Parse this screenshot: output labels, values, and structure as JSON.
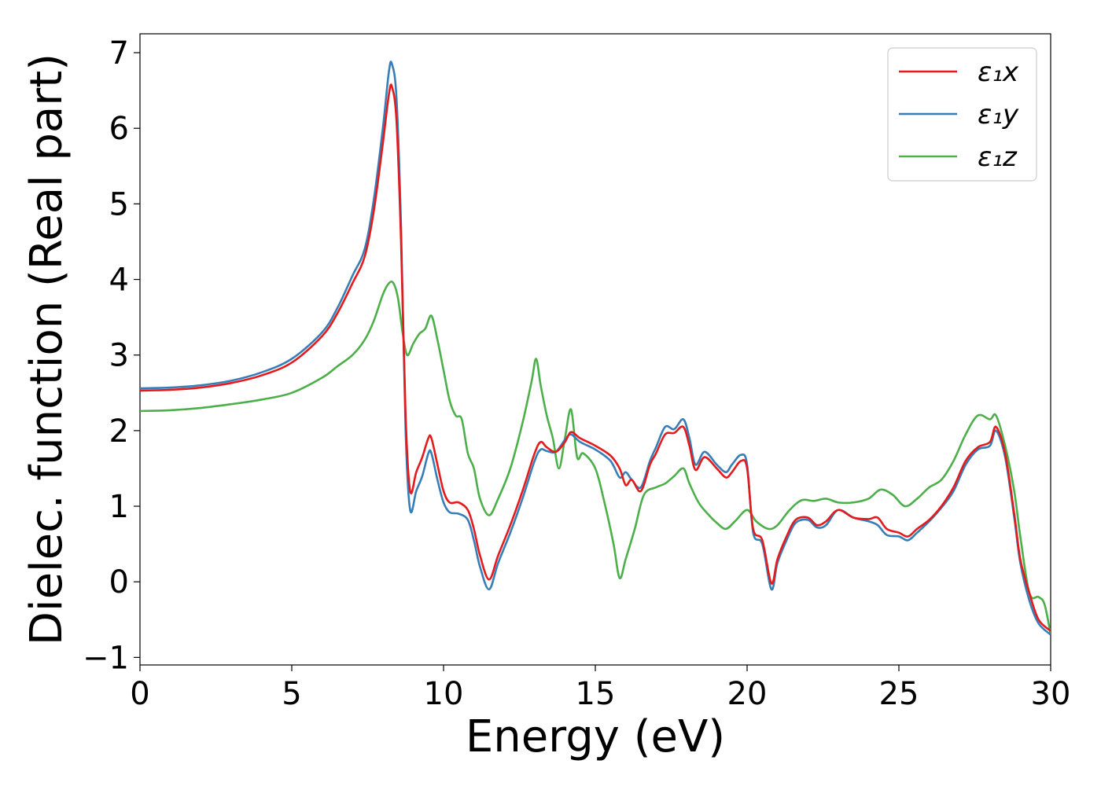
{
  "chart_data": {
    "type": "line",
    "title": "",
    "xlabel": "Energy (eV)",
    "ylabel": "Dielec. function (Real part)",
    "xlim": [
      0,
      30
    ],
    "ylim": [
      -1.1,
      7.25
    ],
    "xticks": [
      0,
      5,
      10,
      15,
      20,
      25,
      30
    ],
    "yticks": [
      -1,
      0,
      1,
      2,
      3,
      4,
      5,
      6,
      7
    ],
    "xtick_labels": [
      "0",
      "5",
      "10",
      "15",
      "20",
      "25",
      "30"
    ],
    "ytick_labels": [
      "−1",
      "0",
      "1",
      "2",
      "3",
      "4",
      "5",
      "6",
      "7"
    ],
    "grid": false,
    "legend_position": "top-right",
    "series": [
      {
        "name": "ε₁x",
        "color": "#e41a1c",
        "points": [
          [
            0,
            2.53
          ],
          [
            1,
            2.54
          ],
          [
            2,
            2.57
          ],
          [
            3,
            2.63
          ],
          [
            4,
            2.73
          ],
          [
            5,
            2.9
          ],
          [
            6,
            3.25
          ],
          [
            6.5,
            3.55
          ],
          [
            7,
            3.95
          ],
          [
            7.4,
            4.3
          ],
          [
            7.7,
            4.9
          ],
          [
            8.0,
            5.8
          ],
          [
            8.2,
            6.45
          ],
          [
            8.3,
            6.55
          ],
          [
            8.45,
            6.1
          ],
          [
            8.6,
            4.5
          ],
          [
            8.75,
            2.2
          ],
          [
            8.9,
            1.2
          ],
          [
            9.1,
            1.45
          ],
          [
            9.3,
            1.65
          ],
          [
            9.5,
            1.9
          ],
          [
            9.6,
            1.9
          ],
          [
            9.8,
            1.55
          ],
          [
            10.0,
            1.2
          ],
          [
            10.2,
            1.05
          ],
          [
            10.5,
            1.05
          ],
          [
            10.8,
            0.95
          ],
          [
            11.0,
            0.7
          ],
          [
            11.2,
            0.35
          ],
          [
            11.5,
            0.03
          ],
          [
            11.8,
            0.35
          ],
          [
            12.2,
            0.75
          ],
          [
            12.6,
            1.2
          ],
          [
            13.0,
            1.7
          ],
          [
            13.2,
            1.85
          ],
          [
            13.4,
            1.78
          ],
          [
            13.7,
            1.72
          ],
          [
            14.0,
            1.85
          ],
          [
            14.2,
            1.98
          ],
          [
            14.5,
            1.9
          ],
          [
            15.0,
            1.8
          ],
          [
            15.5,
            1.67
          ],
          [
            15.8,
            1.5
          ],
          [
            16.0,
            1.28
          ],
          [
            16.2,
            1.35
          ],
          [
            16.5,
            1.2
          ],
          [
            16.8,
            1.55
          ],
          [
            17.0,
            1.7
          ],
          [
            17.3,
            1.95
          ],
          [
            17.6,
            1.97
          ],
          [
            17.9,
            2.05
          ],
          [
            18.1,
            1.8
          ],
          [
            18.3,
            1.48
          ],
          [
            18.6,
            1.65
          ],
          [
            19.0,
            1.5
          ],
          [
            19.3,
            1.38
          ],
          [
            19.5,
            1.45
          ],
          [
            19.8,
            1.6
          ],
          [
            20.0,
            1.5
          ],
          [
            20.2,
            0.7
          ],
          [
            20.5,
            0.55
          ],
          [
            20.8,
            -0.02
          ],
          [
            21.0,
            0.3
          ],
          [
            21.3,
            0.6
          ],
          [
            21.6,
            0.82
          ],
          [
            22.0,
            0.85
          ],
          [
            22.3,
            0.75
          ],
          [
            22.6,
            0.8
          ],
          [
            23.0,
            0.95
          ],
          [
            23.5,
            0.85
          ],
          [
            24.0,
            0.83
          ],
          [
            24.3,
            0.85
          ],
          [
            24.6,
            0.7
          ],
          [
            25.0,
            0.65
          ],
          [
            25.3,
            0.6
          ],
          [
            25.6,
            0.7
          ],
          [
            26.0,
            0.82
          ],
          [
            26.4,
            1.0
          ],
          [
            26.8,
            1.25
          ],
          [
            27.2,
            1.6
          ],
          [
            27.6,
            1.78
          ],
          [
            28.0,
            1.85
          ],
          [
            28.2,
            2.05
          ],
          [
            28.5,
            1.7
          ],
          [
            28.8,
            0.9
          ],
          [
            29.0,
            0.3
          ],
          [
            29.3,
            -0.15
          ],
          [
            29.6,
            -0.5
          ],
          [
            30,
            -0.65
          ]
        ]
      },
      {
        "name": "ε₁y",
        "color": "#377eb8",
        "points": [
          [
            0,
            2.56
          ],
          [
            1,
            2.57
          ],
          [
            2,
            2.6
          ],
          [
            3,
            2.66
          ],
          [
            4,
            2.77
          ],
          [
            5,
            2.95
          ],
          [
            6,
            3.3
          ],
          [
            6.5,
            3.62
          ],
          [
            7,
            4.05
          ],
          [
            7.4,
            4.4
          ],
          [
            7.7,
            5.05
          ],
          [
            8.0,
            6.0
          ],
          [
            8.2,
            6.75
          ],
          [
            8.3,
            6.85
          ],
          [
            8.45,
            6.4
          ],
          [
            8.6,
            4.7
          ],
          [
            8.75,
            2.0
          ],
          [
            8.9,
            0.95
          ],
          [
            9.1,
            1.2
          ],
          [
            9.3,
            1.4
          ],
          [
            9.5,
            1.7
          ],
          [
            9.6,
            1.7
          ],
          [
            9.8,
            1.35
          ],
          [
            10.0,
            1.05
          ],
          [
            10.2,
            0.92
          ],
          [
            10.5,
            0.9
          ],
          [
            10.8,
            0.82
          ],
          [
            11.0,
            0.55
          ],
          [
            11.2,
            0.2
          ],
          [
            11.5,
            -0.1
          ],
          [
            11.8,
            0.25
          ],
          [
            12.2,
            0.65
          ],
          [
            12.6,
            1.1
          ],
          [
            13.0,
            1.6
          ],
          [
            13.2,
            1.75
          ],
          [
            13.4,
            1.73
          ],
          [
            13.7,
            1.72
          ],
          [
            14.0,
            1.88
          ],
          [
            14.2,
            1.95
          ],
          [
            14.5,
            1.85
          ],
          [
            15.0,
            1.75
          ],
          [
            15.5,
            1.6
          ],
          [
            15.8,
            1.38
          ],
          [
            16.0,
            1.45
          ],
          [
            16.2,
            1.35
          ],
          [
            16.5,
            1.25
          ],
          [
            16.8,
            1.6
          ],
          [
            17.0,
            1.78
          ],
          [
            17.3,
            2.05
          ],
          [
            17.6,
            2.02
          ],
          [
            17.9,
            2.15
          ],
          [
            18.1,
            1.9
          ],
          [
            18.3,
            1.55
          ],
          [
            18.6,
            1.72
          ],
          [
            19.0,
            1.55
          ],
          [
            19.3,
            1.45
          ],
          [
            19.5,
            1.55
          ],
          [
            19.8,
            1.68
          ],
          [
            20.0,
            1.55
          ],
          [
            20.2,
            0.65
          ],
          [
            20.5,
            0.5
          ],
          [
            20.8,
            -0.1
          ],
          [
            21.0,
            0.25
          ],
          [
            21.3,
            0.55
          ],
          [
            21.6,
            0.78
          ],
          [
            22.0,
            0.82
          ],
          [
            22.3,
            0.72
          ],
          [
            22.6,
            0.75
          ],
          [
            23.0,
            0.95
          ],
          [
            23.5,
            0.85
          ],
          [
            24.0,
            0.8
          ],
          [
            24.3,
            0.75
          ],
          [
            24.6,
            0.62
          ],
          [
            25.0,
            0.6
          ],
          [
            25.3,
            0.55
          ],
          [
            25.6,
            0.65
          ],
          [
            26.0,
            0.8
          ],
          [
            26.4,
            0.98
          ],
          [
            26.8,
            1.2
          ],
          [
            27.2,
            1.55
          ],
          [
            27.6,
            1.75
          ],
          [
            28.0,
            1.8
          ],
          [
            28.2,
            2.0
          ],
          [
            28.5,
            1.65
          ],
          [
            28.8,
            0.85
          ],
          [
            29.0,
            0.25
          ],
          [
            29.3,
            -0.25
          ],
          [
            29.6,
            -0.55
          ],
          [
            30,
            -0.7
          ]
        ]
      },
      {
        "name": "ε₁z",
        "color": "#4daf4a",
        "points": [
          [
            0,
            2.26
          ],
          [
            1,
            2.27
          ],
          [
            2,
            2.3
          ],
          [
            3,
            2.35
          ],
          [
            4,
            2.41
          ],
          [
            5,
            2.5
          ],
          [
            6,
            2.7
          ],
          [
            6.5,
            2.85
          ],
          [
            7,
            3.0
          ],
          [
            7.4,
            3.2
          ],
          [
            7.7,
            3.45
          ],
          [
            8.0,
            3.8
          ],
          [
            8.2,
            3.95
          ],
          [
            8.35,
            3.95
          ],
          [
            8.5,
            3.75
          ],
          [
            8.65,
            3.3
          ],
          [
            8.8,
            3.0
          ],
          [
            9.0,
            3.15
          ],
          [
            9.2,
            3.28
          ],
          [
            9.4,
            3.35
          ],
          [
            9.6,
            3.52
          ],
          [
            9.8,
            3.2
          ],
          [
            10.0,
            2.8
          ],
          [
            10.2,
            2.4
          ],
          [
            10.4,
            2.2
          ],
          [
            10.6,
            2.15
          ],
          [
            10.8,
            1.7
          ],
          [
            11.0,
            1.5
          ],
          [
            11.2,
            1.1
          ],
          [
            11.5,
            0.88
          ],
          [
            11.8,
            1.1
          ],
          [
            12.2,
            1.5
          ],
          [
            12.6,
            2.1
          ],
          [
            12.9,
            2.65
          ],
          [
            13.05,
            2.95
          ],
          [
            13.2,
            2.6
          ],
          [
            13.4,
            2.2
          ],
          [
            13.6,
            1.9
          ],
          [
            13.8,
            1.5
          ],
          [
            14.0,
            1.9
          ],
          [
            14.2,
            2.28
          ],
          [
            14.4,
            1.65
          ],
          [
            14.6,
            1.7
          ],
          [
            15.0,
            1.5
          ],
          [
            15.3,
            1.05
          ],
          [
            15.6,
            0.5
          ],
          [
            15.8,
            0.05
          ],
          [
            16.0,
            0.3
          ],
          [
            16.3,
            0.7
          ],
          [
            16.6,
            1.15
          ],
          [
            17.0,
            1.25
          ],
          [
            17.3,
            1.3
          ],
          [
            17.6,
            1.4
          ],
          [
            17.9,
            1.5
          ],
          [
            18.1,
            1.3
          ],
          [
            18.4,
            1.05
          ],
          [
            18.7,
            0.9
          ],
          [
            19.0,
            0.78
          ],
          [
            19.3,
            0.7
          ],
          [
            19.6,
            0.8
          ],
          [
            20.0,
            0.95
          ],
          [
            20.3,
            0.8
          ],
          [
            20.7,
            0.7
          ],
          [
            21.0,
            0.75
          ],
          [
            21.4,
            0.95
          ],
          [
            21.8,
            1.08
          ],
          [
            22.2,
            1.07
          ],
          [
            22.6,
            1.1
          ],
          [
            23.0,
            1.05
          ],
          [
            23.5,
            1.05
          ],
          [
            24.0,
            1.1
          ],
          [
            24.4,
            1.22
          ],
          [
            24.8,
            1.15
          ],
          [
            25.2,
            1.0
          ],
          [
            25.6,
            1.1
          ],
          [
            26.0,
            1.25
          ],
          [
            26.4,
            1.35
          ],
          [
            26.8,
            1.6
          ],
          [
            27.2,
            1.95
          ],
          [
            27.6,
            2.2
          ],
          [
            28.0,
            2.15
          ],
          [
            28.2,
            2.2
          ],
          [
            28.5,
            1.8
          ],
          [
            28.8,
            1.2
          ],
          [
            29.0,
            0.6
          ],
          [
            29.3,
            -0.15
          ],
          [
            29.6,
            -0.2
          ],
          [
            29.8,
            -0.3
          ],
          [
            30,
            -0.7
          ]
        ]
      }
    ]
  }
}
